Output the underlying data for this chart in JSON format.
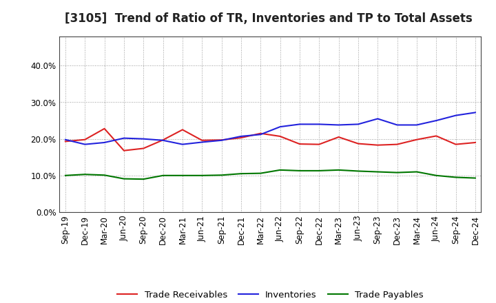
{
  "title": "[3105]  Trend of Ratio of TR, Inventories and TP to Total Assets",
  "labels": [
    "Sep-19",
    "Dec-19",
    "Mar-20",
    "Jun-20",
    "Sep-20",
    "Dec-20",
    "Mar-21",
    "Jun-21",
    "Sep-21",
    "Dec-21",
    "Mar-22",
    "Jun-22",
    "Sep-22",
    "Dec-22",
    "Mar-23",
    "Jun-23",
    "Sep-23",
    "Dec-23",
    "Mar-24",
    "Jun-24",
    "Sep-24",
    "Dec-24"
  ],
  "trade_receivables": [
    0.193,
    0.198,
    0.228,
    0.168,
    0.174,
    0.197,
    0.225,
    0.196,
    0.197,
    0.203,
    0.215,
    0.207,
    0.186,
    0.185,
    0.205,
    0.187,
    0.183,
    0.185,
    0.198,
    0.208,
    0.185,
    0.19
  ],
  "inventories": [
    0.198,
    0.185,
    0.19,
    0.202,
    0.2,
    0.196,
    0.185,
    0.191,
    0.196,
    0.207,
    0.212,
    0.233,
    0.24,
    0.24,
    0.238,
    0.24,
    0.255,
    0.238,
    0.238,
    0.25,
    0.264,
    0.272
  ],
  "trade_payables": [
    0.1,
    0.103,
    0.101,
    0.091,
    0.09,
    0.1,
    0.1,
    0.1,
    0.101,
    0.105,
    0.106,
    0.115,
    0.113,
    0.113,
    0.115,
    0.112,
    0.11,
    0.108,
    0.11,
    0.1,
    0.095,
    0.093
  ],
  "tr_color": "#dd2222",
  "inv_color": "#2222dd",
  "tp_color": "#007700",
  "ylim": [
    0.0,
    0.48
  ],
  "yticks": [
    0.0,
    0.1,
    0.2,
    0.3,
    0.4
  ],
  "background_color": "#ffffff",
  "grid_color": "#999999",
  "legend_labels": [
    "Trade Receivables",
    "Inventories",
    "Trade Payables"
  ],
  "title_fontsize": 12,
  "axis_fontsize": 8.5,
  "legend_fontsize": 9.5
}
